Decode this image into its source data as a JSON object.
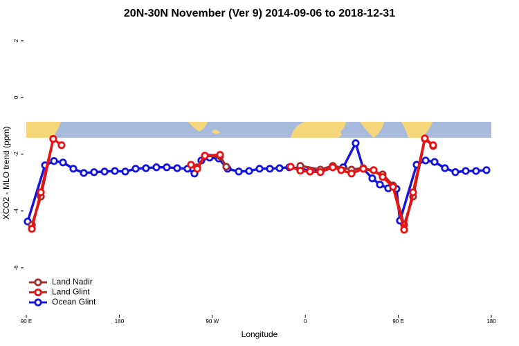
{
  "chart_data": {
    "type": "line",
    "title": "20N-30N November (Ver 9)   2014-09-06 to 2018-12-31",
    "xlabel": "Longitude",
    "ylabel": "XCO2 - MLO trend (ppm)",
    "xlim": [
      90,
      540
    ],
    "ylim": [
      -7.66,
      2.46
    ],
    "xticks": [
      {
        "value": 90,
        "label": "90 E"
      },
      180,
      {
        "value": 270,
        "label": "90 W"
      },
      {
        "value": 360,
        "label": "0"
      },
      {
        "value": 450,
        "label": "90 E"
      },
      180
    ],
    "yticks": [
      2,
      0,
      -2,
      -4,
      -6
    ],
    "legend": "bottom-left",
    "series": [
      {
        "name": "Ocean Glint",
        "color": "#1414e0",
        "x": [
          91.3,
          108.1,
          116.8,
          125.5,
          135.5,
          145.6,
          155.6,
          165.7,
          175.7,
          185.8,
          195.8,
          205.8,
          215.9,
          225.9,
          236.0,
          246.0,
          252.7,
          259.4,
          267.4,
          276.1,
          284.8,
          295.6,
          305.6,
          315.7,
          325.7,
          335.1,
          344.5,
          354.5,
          364.5,
          374.6,
          386.6,
          396.7,
          408.7,
          416.1,
          424.8,
          432.2,
          440.2,
          448.2,
          451.6,
          467.7,
          476.4,
          485.1,
          495.1,
          505.2,
          515.2,
          525.2,
          535.3
        ],
        "values": [
          -4.37,
          -2.39,
          -2.24,
          -2.29,
          -2.51,
          -2.66,
          -2.63,
          -2.61,
          -2.59,
          -2.61,
          -2.51,
          -2.49,
          -2.46,
          -2.46,
          -2.49,
          -2.51,
          -2.68,
          -2.22,
          -2.12,
          -2.15,
          -2.51,
          -2.61,
          -2.59,
          -2.51,
          -2.51,
          -2.49,
          -2.46,
          -2.5,
          -2.58,
          -2.6,
          -2.46,
          -2.46,
          -1.61,
          -2.51,
          -2.85,
          -3.07,
          -3.2,
          -3.22,
          -4.34,
          -2.37,
          -2.22,
          -2.27,
          -2.49,
          -2.63,
          -2.59,
          -2.59,
          -2.56
        ]
      },
      {
        "name": "Land Nadir",
        "color": "#a03030",
        "x": [
          95.4,
          104.1,
          116.1,
          null,
          255.4,
          262.8,
          277.5,
          283.5,
          null,
          355.2,
          374.6,
          386.6,
          404.7,
          416.1,
          434.8,
          444.9,
          455.6,
          464.3,
          475.7,
          483.7
        ],
        "values": [
          -4.49,
          -3.49,
          -1.46,
          null,
          -2.46,
          -2.05,
          -2.07,
          -2.44,
          null,
          -2.41,
          -2.54,
          -2.41,
          -2.54,
          -2.49,
          -2.71,
          -3.1,
          -4.49,
          -3.49,
          -1.46,
          -1.71
        ]
      },
      {
        "name": "Land Glint",
        "color": "#ee1111",
        "x": [
          95.4,
          104.1,
          116.1,
          124.1,
          null,
          249.4,
          255.4,
          262.8,
          277.5,
          null,
          345.8,
          355.2,
          364.5,
          374.6,
          386.6,
          394.7,
          404.7,
          416.1,
          426.1,
          434.8,
          444.9,
          455.6,
          464.3,
          475.7,
          483.7
        ],
        "values": [
          -4.63,
          -3.34,
          -1.46,
          -1.68,
          null,
          -2.37,
          -2.51,
          -2.05,
          -2.02,
          null,
          -2.44,
          -2.58,
          -2.61,
          -2.63,
          -2.46,
          -2.56,
          -2.68,
          -2.51,
          -2.56,
          -2.8,
          -3.15,
          -4.66,
          -3.34,
          -1.44,
          -1.68
        ]
      }
    ]
  }
}
